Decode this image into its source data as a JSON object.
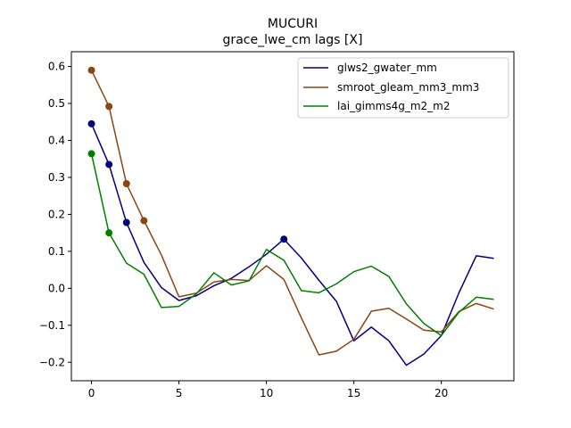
{
  "chart_data": {
    "type": "line",
    "title": "MUCURI",
    "subtitle": "grace_lwe_cm lags [X]",
    "xlabel": "",
    "ylabel": "",
    "xlim": [
      -1.15,
      24.15
    ],
    "ylim": [
      -0.25,
      0.64
    ],
    "xticks": [
      0,
      5,
      10,
      15,
      20
    ],
    "yticks": [
      -0.2,
      -0.1,
      0.0,
      0.1,
      0.2,
      0.3,
      0.4,
      0.5,
      0.6
    ],
    "xtick_labels": [
      "0",
      "5",
      "10",
      "15",
      "20"
    ],
    "ytick_labels": [
      "−0.2",
      "−0.1",
      "0.0",
      "0.1",
      "0.2",
      "0.3",
      "0.4",
      "0.5",
      "0.6"
    ],
    "grid": false,
    "legend_position": "top-right",
    "series": [
      {
        "name": "glws2_gwater_mm",
        "color": "#00007f",
        "x": [
          0,
          1,
          2,
          3,
          4,
          5,
          6,
          7,
          8,
          9,
          10,
          11,
          12,
          13,
          14,
          15,
          16,
          17,
          18,
          19,
          20,
          21,
          22,
          23
        ],
        "values": [
          0.445,
          0.335,
          0.178,
          0.07,
          0.002,
          -0.033,
          -0.02,
          0.007,
          0.027,
          0.058,
          0.092,
          0.133,
          0.082,
          0.022,
          -0.035,
          -0.142,
          -0.105,
          -0.142,
          -0.208,
          -0.178,
          -0.128,
          -0.013,
          0.088,
          0.081
        ],
        "markers_x": [
          0,
          1,
          2,
          11
        ]
      },
      {
        "name": "smroot_gleam_mm3_mm3",
        "color": "#8b4513",
        "x": [
          0,
          1,
          2,
          3,
          4,
          5,
          6,
          7,
          8,
          9,
          10,
          11,
          12,
          13,
          14,
          15,
          16,
          17,
          18,
          19,
          20,
          21,
          22,
          23
        ],
        "values": [
          0.59,
          0.492,
          0.283,
          0.183,
          0.09,
          -0.023,
          -0.013,
          0.017,
          0.024,
          0.021,
          0.061,
          0.024,
          -0.08,
          -0.18,
          -0.17,
          -0.138,
          -0.062,
          -0.054,
          -0.083,
          -0.113,
          -0.118,
          -0.063,
          -0.041,
          -0.056
        ],
        "markers_x": [
          0,
          1,
          2,
          3
        ]
      },
      {
        "name": "lai_gimms4g_m2_m2",
        "color": "#007f00",
        "x": [
          0,
          1,
          2,
          3,
          4,
          5,
          6,
          7,
          8,
          9,
          10,
          11,
          12,
          13,
          14,
          15,
          16,
          17,
          18,
          19,
          20,
          21,
          22,
          23
        ],
        "values": [
          0.364,
          0.15,
          0.068,
          0.038,
          -0.052,
          -0.049,
          -0.015,
          0.042,
          0.009,
          0.02,
          0.105,
          0.076,
          -0.006,
          -0.012,
          0.012,
          0.045,
          0.06,
          0.032,
          -0.042,
          -0.095,
          -0.128,
          -0.065,
          -0.024,
          -0.03
        ],
        "markers_x": [
          0,
          1
        ]
      }
    ]
  }
}
